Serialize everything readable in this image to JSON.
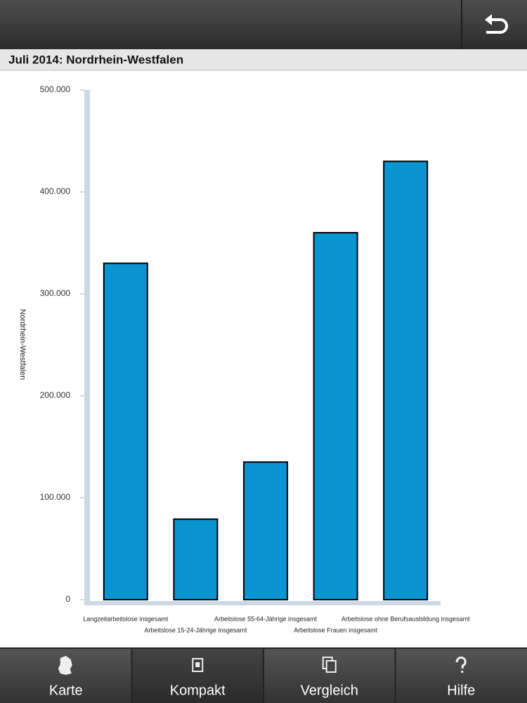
{
  "header": {
    "title": "Juli 2014: Nordrhein-Westfalen"
  },
  "chart_data": {
    "type": "bar",
    "y_label": "Nordrhein-Westfalen",
    "categories": [
      "Langzeitarbeitslose insgesamt",
      "Arbeitslose 15-24-Jährige insgesamt",
      "Arbeitslose 55-64-Jährige insgesamt",
      "Arbeitslose Frauen insgesamt",
      "Arbeitslose ohne Berufsausbildung insgesamt"
    ],
    "values": [
      330000,
      79000,
      135000,
      360000,
      430000
    ],
    "color": "#0a95d2",
    "ylim": [
      0,
      500000
    ],
    "yticks": [
      0,
      {
        "value": 100000,
        "label": "100.000"
      },
      {
        "value": 200000,
        "label": "200.000"
      },
      {
        "value": 300000,
        "label": "300.000"
      },
      {
        "value": 400000,
        "label": "400.000"
      },
      {
        "value": 500000,
        "label": "500.000"
      }
    ]
  },
  "nav": {
    "tabs": [
      {
        "label": "Karte",
        "selected": false
      },
      {
        "label": "Kompakt",
        "selected": true
      },
      {
        "label": "Vergleich",
        "selected": false
      },
      {
        "label": "Hilfe",
        "selected": false
      }
    ]
  }
}
